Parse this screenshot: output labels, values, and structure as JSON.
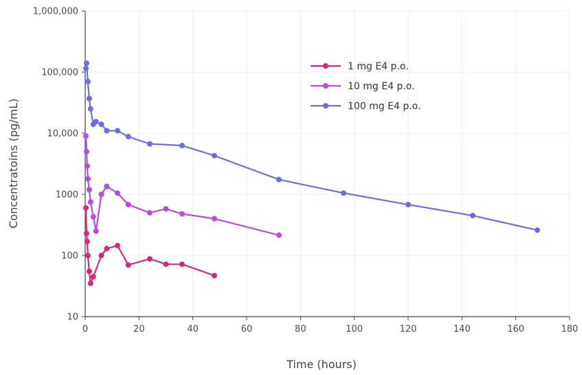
{
  "chart_data": {
    "type": "line",
    "title": "",
    "xlabel": "Time (hours)",
    "ylabel": "Concentratoins (pg/mL)",
    "xlim": [
      0,
      180
    ],
    "ylim": [
      10,
      1000000
    ],
    "yscale": "log",
    "grid": true,
    "legend_position": "top-right",
    "x_ticks": [
      "0",
      "20",
      "40",
      "60",
      "80",
      "100",
      "120",
      "140",
      "160",
      "180"
    ],
    "y_ticks": [
      "10",
      "100",
      "1000",
      "10,000",
      "100,000",
      "1,000,000"
    ],
    "series": [
      {
        "name": "1 mg E4 p.o.",
        "color": "#d4297f",
        "points": [
          [
            0.25,
            600
          ],
          [
            0.5,
            230
          ],
          [
            0.75,
            170
          ],
          [
            1,
            100
          ],
          [
            1.5,
            55
          ],
          [
            2,
            35
          ],
          [
            3,
            45
          ],
          [
            6,
            100
          ],
          [
            8,
            130
          ],
          [
            12,
            145
          ],
          [
            16,
            70
          ],
          [
            24,
            88
          ],
          [
            30,
            72
          ],
          [
            36,
            72
          ],
          [
            48,
            47
          ]
        ]
      },
      {
        "name": "10 mg E4 p.o.",
        "color": "#b44ce0",
        "points": [
          [
            0.25,
            9000
          ],
          [
            0.5,
            5000
          ],
          [
            0.75,
            2900
          ],
          [
            1,
            1800
          ],
          [
            1.5,
            1200
          ],
          [
            2,
            750
          ],
          [
            3,
            430
          ],
          [
            4,
            250
          ],
          [
            6,
            1000
          ],
          [
            8,
            1350
          ],
          [
            12,
            1050
          ],
          [
            16,
            680
          ],
          [
            24,
            500
          ],
          [
            30,
            580
          ],
          [
            36,
            480
          ],
          [
            48,
            400
          ],
          [
            72,
            215
          ]
        ]
      },
      {
        "name": "100 mg E4 p.o.",
        "color": "#6b6ee3",
        "points": [
          [
            0.25,
            115000
          ],
          [
            0.5,
            140000
          ],
          [
            1,
            70000
          ],
          [
            1.5,
            37000
          ],
          [
            2,
            25000
          ],
          [
            3,
            14000
          ],
          [
            4,
            15500
          ],
          [
            6,
            14000
          ],
          [
            8,
            11000
          ],
          [
            12,
            11000
          ],
          [
            16,
            8800
          ],
          [
            24,
            6700
          ],
          [
            36,
            6300
          ],
          [
            48,
            4300
          ],
          [
            72,
            1750
          ],
          [
            96,
            1050
          ],
          [
            120,
            680
          ],
          [
            144,
            450
          ],
          [
            168,
            260
          ]
        ]
      }
    ]
  }
}
